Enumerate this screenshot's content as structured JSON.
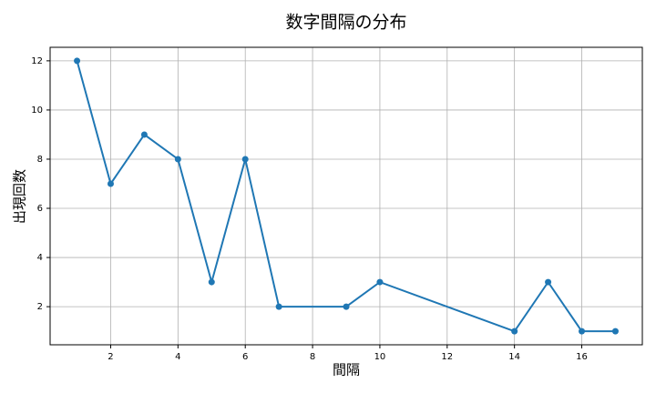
{
  "chart_data": {
    "type": "line",
    "title": "数字間隔の分布",
    "x_label": "間隔",
    "y_label": "出現回数",
    "x": [
      1,
      2,
      3,
      4,
      5,
      6,
      7,
      9,
      10,
      14,
      15,
      16,
      17
    ],
    "series": [
      {
        "color": "#1f77b4",
        "values": [
          12,
          7,
          9,
          8,
          3,
          8,
          2,
          2,
          3,
          1,
          3,
          1,
          1
        ]
      }
    ],
    "xlim": [
      0.2,
      17.8
    ],
    "ylim": [
      0.45,
      12.55
    ],
    "xticks": [
      2,
      4,
      6,
      8,
      10,
      12,
      14,
      16
    ],
    "yticks": [
      2,
      4,
      6,
      8,
      10,
      12
    ],
    "grid": true
  }
}
